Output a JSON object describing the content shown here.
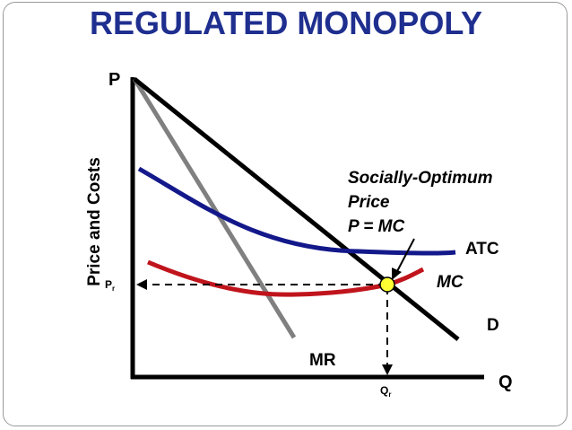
{
  "title": "REGULATED MONOPOLY",
  "axes": {
    "y_letter": "P",
    "x_letter": "Q",
    "y_label": "Price and Costs"
  },
  "curves": {
    "atc": "ATC",
    "mc": "MC",
    "d": "D",
    "mr": "MR"
  },
  "annotation": {
    "line1": "Socially-Optimum",
    "line2": "Price",
    "line3": "P = MC"
  },
  "markers": {
    "price_main": "P",
    "price_sub": "r",
    "qty_main": "Q",
    "qty_sub": "r"
  },
  "colors": {
    "title": "#1f2f8f",
    "atc": "#13188a",
    "mc": "#c0141c",
    "mr": "#808080",
    "demand": "#000000",
    "point": "#ffff33"
  }
}
